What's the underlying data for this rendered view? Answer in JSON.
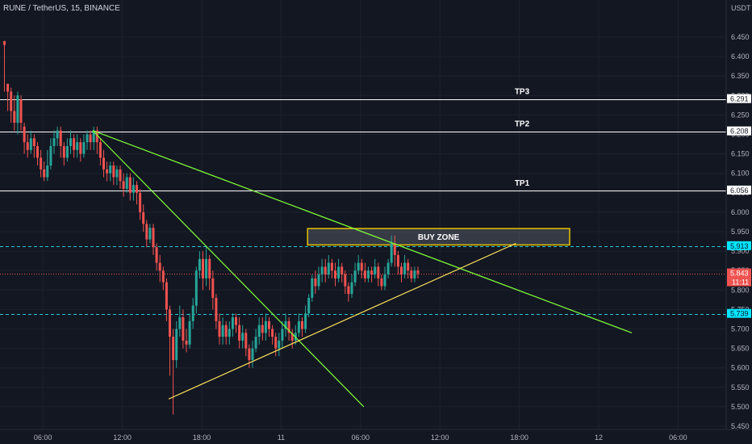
{
  "header": {
    "ticker_line": "RUNE / TetherUS, 15, BINANCE"
  },
  "price_axis": {
    "currency": "USDT",
    "ticks": [
      "6.450",
      "6.400",
      "6.350",
      "6.300",
      "6.250",
      "6.200",
      "6.150",
      "6.100",
      "6.050",
      "6.000",
      "5.950",
      "5.900",
      "5.850",
      "5.800",
      "5.750",
      "5.700",
      "5.650",
      "5.600",
      "5.550",
      "5.500",
      "5.450"
    ],
    "countdown": "11:11"
  },
  "time_axis": {
    "ticks": [
      "06:00",
      "12:00",
      "18:00",
      "11",
      "06:00",
      "12:00",
      "18:00",
      "12",
      "06:00"
    ]
  },
  "levels": [
    {
      "name": "TP3",
      "price": 6.291,
      "label": "TP3",
      "tag": "6.291",
      "style": "solid-white"
    },
    {
      "name": "TP2",
      "price": 6.208,
      "label": "TP2",
      "tag": "6.208",
      "style": "solid-white"
    },
    {
      "name": "TP1",
      "price": 6.056,
      "label": "TP1",
      "tag": "6.056",
      "style": "solid-white"
    },
    {
      "name": "upper",
      "price": 5.913,
      "label": "",
      "tag": "5.913",
      "style": "dashed-teal"
    },
    {
      "name": "current",
      "price": 5.843,
      "label": "",
      "tag": "5.843",
      "style": "dotted-red"
    },
    {
      "name": "lower",
      "price": 5.739,
      "label": "",
      "tag": "5.739",
      "style": "dashed-teal"
    }
  ],
  "buy_zone": {
    "label": "BUY ZONE",
    "top": 5.958,
    "bottom": 5.916,
    "from": 92,
    "to": 170,
    "color": "#e6c300"
  },
  "colors": {
    "up": "#26a69a",
    "down": "#ef5350",
    "trend_green": "#7fff3a",
    "trend_yellow": "#ffe55c",
    "background": "#131722",
    "tag_teal": "#00e5ff",
    "tag_red": "#ef5350"
  },
  "chart_data": {
    "type": "candlestick",
    "symbol": "RUNE / TetherUS",
    "interval": "15",
    "exchange": "BINANCE",
    "y_axis": {
      "label": "USDT",
      "ylim": [
        5.44,
        6.47
      ]
    },
    "x_index_ticks": [
      {
        "i": 12,
        "label": "06:00"
      },
      {
        "i": 36,
        "label": "12:00"
      },
      {
        "i": 60,
        "label": "18:00"
      },
      {
        "i": 84,
        "label": "11"
      },
      {
        "i": 108,
        "label": "06:00"
      },
      {
        "i": 132,
        "label": "12:00"
      },
      {
        "i": 156,
        "label": "18:00"
      },
      {
        "i": 180,
        "label": "12"
      },
      {
        "i": 204,
        "label": "06:00"
      }
    ],
    "candles": [
      [
        0,
        6.44,
        6.43,
        6.31,
        6.43
      ],
      [
        1,
        6.33,
        6.31,
        6.26,
        6.33
      ],
      [
        2,
        6.31,
        6.26,
        6.23,
        6.32
      ],
      [
        3,
        6.26,
        6.23,
        6.21,
        6.3
      ],
      [
        4,
        6.23,
        6.3,
        6.2,
        6.31
      ],
      [
        5,
        6.29,
        6.23,
        6.21,
        6.3
      ],
      [
        6,
        6.22,
        6.18,
        6.15,
        6.23
      ],
      [
        7,
        6.18,
        6.16,
        6.14,
        6.2
      ],
      [
        8,
        6.16,
        6.19,
        6.15,
        6.21
      ],
      [
        9,
        6.19,
        6.17,
        6.14,
        6.2
      ],
      [
        10,
        6.17,
        6.14,
        6.12,
        6.18
      ],
      [
        11,
        6.14,
        6.11,
        6.09,
        6.16
      ],
      [
        12,
        6.11,
        6.09,
        6.08,
        6.13
      ],
      [
        13,
        6.09,
        6.12,
        6.08,
        6.16
      ],
      [
        14,
        6.12,
        6.17,
        6.11,
        6.19
      ],
      [
        15,
        6.17,
        6.19,
        6.15,
        6.21
      ],
      [
        16,
        6.19,
        6.21,
        6.17,
        6.22
      ],
      [
        17,
        6.21,
        6.17,
        6.14,
        6.22
      ],
      [
        18,
        6.17,
        6.14,
        6.12,
        6.18
      ],
      [
        19,
        6.14,
        6.17,
        6.13,
        6.19
      ],
      [
        20,
        6.17,
        6.19,
        6.15,
        6.21
      ],
      [
        21,
        6.19,
        6.16,
        6.14,
        6.2
      ],
      [
        22,
        6.16,
        6.18,
        6.14,
        6.2
      ],
      [
        23,
        6.18,
        6.15,
        6.13,
        6.19
      ],
      [
        24,
        6.15,
        6.18,
        6.14,
        6.2
      ],
      [
        25,
        6.18,
        6.2,
        6.16,
        6.21
      ],
      [
        26,
        6.2,
        6.18,
        6.16,
        6.21
      ],
      [
        27,
        6.18,
        6.21,
        6.16,
        6.22
      ],
      [
        28,
        6.21,
        6.18,
        6.15,
        6.22
      ],
      [
        29,
        6.18,
        6.14,
        6.12,
        6.19
      ],
      [
        30,
        6.14,
        6.11,
        6.09,
        6.16
      ],
      [
        31,
        6.11,
        6.1,
        6.08,
        6.13
      ],
      [
        32,
        6.1,
        6.12,
        6.08,
        6.13
      ],
      [
        33,
        6.12,
        6.09,
        6.07,
        6.13
      ],
      [
        34,
        6.09,
        6.11,
        6.07,
        6.12
      ],
      [
        35,
        6.11,
        6.08,
        6.06,
        6.12
      ],
      [
        36,
        6.08,
        6.06,
        6.04,
        6.1
      ],
      [
        37,
        6.06,
        6.09,
        6.05,
        6.1
      ],
      [
        38,
        6.09,
        6.05,
        6.03,
        6.1
      ],
      [
        39,
        6.05,
        6.07,
        6.03,
        6.09
      ],
      [
        40,
        6.07,
        6.05,
        6.02,
        6.08
      ],
      [
        41,
        6.05,
        6.0,
        5.98,
        6.06
      ],
      [
        42,
        6.0,
        5.97,
        5.95,
        6.02
      ],
      [
        43,
        5.97,
        5.93,
        5.91,
        5.98
      ],
      [
        44,
        5.93,
        5.96,
        5.92,
        5.97
      ],
      [
        45,
        5.96,
        5.91,
        5.89,
        5.97
      ],
      [
        46,
        5.91,
        5.87,
        5.85,
        5.92
      ],
      [
        47,
        5.87,
        5.85,
        5.82,
        5.89
      ],
      [
        48,
        5.85,
        5.82,
        5.8,
        5.86
      ],
      [
        49,
        5.82,
        5.75,
        5.72,
        5.83
      ],
      [
        50,
        5.75,
        5.68,
        5.58,
        5.76
      ],
      [
        51,
        5.68,
        5.62,
        5.48,
        5.7
      ],
      [
        52,
        5.62,
        5.7,
        5.6,
        5.72
      ],
      [
        53,
        5.7,
        5.73,
        5.68,
        5.76
      ],
      [
        54,
        5.73,
        5.67,
        5.65,
        5.75
      ],
      [
        55,
        5.67,
        5.66,
        5.64,
        5.7
      ],
      [
        56,
        5.66,
        5.72,
        5.65,
        5.74
      ],
      [
        57,
        5.72,
        5.76,
        5.7,
        5.78
      ],
      [
        58,
        5.76,
        5.85,
        5.74,
        5.86
      ],
      [
        59,
        5.85,
        5.88,
        5.83,
        5.9
      ],
      [
        60,
        5.88,
        5.83,
        5.8,
        5.9
      ],
      [
        61,
        5.83,
        5.88,
        5.81,
        5.91
      ],
      [
        62,
        5.88,
        5.83,
        5.8,
        5.89
      ],
      [
        63,
        5.83,
        5.78,
        5.75,
        5.85
      ],
      [
        64,
        5.78,
        5.72,
        5.7,
        5.79
      ],
      [
        65,
        5.72,
        5.68,
        5.66,
        5.74
      ],
      [
        66,
        5.68,
        5.71,
        5.66,
        5.73
      ],
      [
        67,
        5.71,
        5.68,
        5.66,
        5.72
      ],
      [
        68,
        5.68,
        5.7,
        5.66,
        5.72
      ],
      [
        69,
        5.7,
        5.73,
        5.68,
        5.74
      ],
      [
        70,
        5.73,
        5.71,
        5.69,
        5.74
      ],
      [
        71,
        5.71,
        5.67,
        5.65,
        5.73
      ],
      [
        72,
        5.67,
        5.69,
        5.65,
        5.71
      ],
      [
        73,
        5.69,
        5.65,
        5.63,
        5.7
      ],
      [
        74,
        5.65,
        5.62,
        5.6,
        5.66
      ],
      [
        75,
        5.62,
        5.65,
        5.6,
        5.67
      ],
      [
        76,
        5.65,
        5.68,
        5.64,
        5.7
      ],
      [
        77,
        5.68,
        5.71,
        5.66,
        5.73
      ],
      [
        78,
        5.71,
        5.69,
        5.67,
        5.73
      ],
      [
        79,
        5.69,
        5.72,
        5.67,
        5.74
      ],
      [
        80,
        5.72,
        5.7,
        5.68,
        5.73
      ],
      [
        81,
        5.7,
        5.68,
        5.66,
        5.71
      ],
      [
        82,
        5.68,
        5.65,
        5.63,
        5.69
      ],
      [
        83,
        5.65,
        5.67,
        5.63,
        5.69
      ],
      [
        84,
        5.67,
        5.7,
        5.65,
        5.72
      ],
      [
        85,
        5.7,
        5.72,
        5.68,
        5.74
      ],
      [
        86,
        5.72,
        5.69,
        5.67,
        5.73
      ],
      [
        87,
        5.69,
        5.67,
        5.65,
        5.7
      ],
      [
        88,
        5.67,
        5.69,
        5.66,
        5.71
      ],
      [
        89,
        5.69,
        5.72,
        5.68,
        5.74
      ],
      [
        90,
        5.72,
        5.7,
        5.68,
        5.73
      ],
      [
        91,
        5.7,
        5.74,
        5.69,
        5.76
      ],
      [
        92,
        5.74,
        5.78,
        5.73,
        5.79
      ],
      [
        93,
        5.78,
        5.83,
        5.77,
        5.84
      ],
      [
        94,
        5.83,
        5.81,
        5.79,
        5.85
      ],
      [
        95,
        5.81,
        5.84,
        5.8,
        5.86
      ],
      [
        96,
        5.84,
        5.86,
        5.82,
        5.88
      ],
      [
        97,
        5.86,
        5.84,
        5.82,
        5.88
      ],
      [
        98,
        5.84,
        5.87,
        5.83,
        5.89
      ],
      [
        99,
        5.87,
        5.85,
        5.83,
        5.88
      ],
      [
        100,
        5.85,
        5.83,
        5.81,
        5.87
      ],
      [
        101,
        5.83,
        5.86,
        5.82,
        5.88
      ],
      [
        102,
        5.86,
        5.84,
        5.82,
        5.87
      ],
      [
        103,
        5.84,
        5.81,
        5.79,
        5.85
      ],
      [
        104,
        5.81,
        5.79,
        5.77,
        5.82
      ],
      [
        105,
        5.79,
        5.82,
        5.78,
        5.84
      ],
      [
        106,
        5.82,
        5.85,
        5.81,
        5.87
      ],
      [
        107,
        5.85,
        5.87,
        5.84,
        5.89
      ],
      [
        108,
        5.87,
        5.85,
        5.83,
        5.88
      ],
      [
        109,
        5.85,
        5.83,
        5.82,
        5.87
      ],
      [
        110,
        5.83,
        5.85,
        5.82,
        5.86
      ],
      [
        111,
        5.85,
        5.84,
        5.82,
        5.86
      ],
      [
        112,
        5.84,
        5.86,
        5.83,
        5.88
      ],
      [
        113,
        5.86,
        5.83,
        5.81,
        5.87
      ],
      [
        114,
        5.83,
        5.81,
        5.8,
        5.84
      ],
      [
        115,
        5.81,
        5.84,
        5.8,
        5.86
      ],
      [
        116,
        5.84,
        5.87,
        5.83,
        5.88
      ],
      [
        117,
        5.87,
        5.92,
        5.86,
        5.94
      ],
      [
        118,
        5.92,
        5.89,
        5.86,
        5.94
      ],
      [
        119,
        5.89,
        5.86,
        5.84,
        5.9
      ],
      [
        120,
        5.86,
        5.84,
        5.82,
        5.87
      ],
      [
        121,
        5.84,
        5.87,
        5.83,
        5.89
      ],
      [
        122,
        5.87,
        5.85,
        5.83,
        5.88
      ],
      [
        123,
        5.85,
        5.83,
        5.82,
        5.86
      ],
      [
        124,
        5.83,
        5.85,
        5.82,
        5.86
      ],
      [
        125,
        5.85,
        5.843,
        5.83,
        5.86
      ]
    ],
    "trendlines": [
      {
        "name": "descending-resistance",
        "color": "green",
        "from": [
          27,
          6.21
        ],
        "to": [
          190,
          5.69
        ]
      },
      {
        "name": "steep-descending",
        "color": "green",
        "from": [
          27,
          6.21
        ],
        "to": [
          109,
          5.5
        ]
      },
      {
        "name": "ascending-support",
        "color": "yellow",
        "from": [
          50,
          5.52
        ],
        "to": [
          155,
          5.92
        ]
      }
    ]
  }
}
